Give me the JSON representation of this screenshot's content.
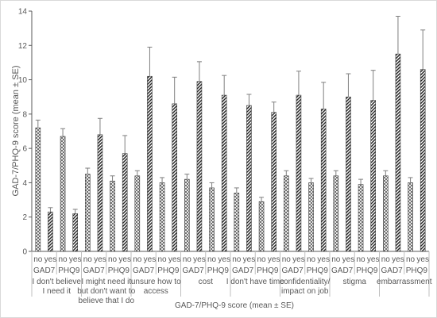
{
  "chart_data": {
    "type": "bar",
    "title": "",
    "ylabel": "GAD-7/PHQ-9 score (mean ± SE)",
    "xlabel": "GAD-7/PHQ-9 score (mean ± SE)",
    "ylim": [
      0,
      14
    ],
    "ytick_step": 2,
    "grid": false,
    "bar_labels": [
      "no",
      "yes"
    ],
    "measure_labels": [
      "GAD7",
      "PHQ9"
    ],
    "groups": [
      {
        "label_lines": [
          "I don't believe",
          "I need it"
        ],
        "measures": [
          {
            "measure": "GAD7",
            "values": [
              7.2,
              2.3
            ],
            "errors": [
              0.45,
              0.25
            ]
          },
          {
            "measure": "PHQ9",
            "values": [
              6.7,
              2.2
            ],
            "errors": [
              0.45,
              0.25
            ]
          }
        ]
      },
      {
        "label_lines": [
          "I might need it",
          "but don't want to",
          "believe that I do"
        ],
        "measures": [
          {
            "measure": "GAD7",
            "values": [
              4.5,
              6.8
            ],
            "errors": [
              0.35,
              0.95
            ]
          },
          {
            "measure": "PHQ9",
            "values": [
              4.1,
              5.7
            ],
            "errors": [
              0.3,
              1.05
            ]
          }
        ]
      },
      {
        "label_lines": [
          "unsure how to",
          "access"
        ],
        "measures": [
          {
            "measure": "GAD7",
            "values": [
              4.4,
              10.2
            ],
            "errors": [
              0.3,
              1.7
            ]
          },
          {
            "measure": "PHQ9",
            "values": [
              4.0,
              8.6
            ],
            "errors": [
              0.3,
              1.55
            ]
          }
        ]
      },
      {
        "label_lines": [
          "cost"
        ],
        "measures": [
          {
            "measure": "GAD7",
            "values": [
              4.2,
              9.9
            ],
            "errors": [
              0.3,
              1.15
            ]
          },
          {
            "measure": "PHQ9",
            "values": [
              3.7,
              9.1
            ],
            "errors": [
              0.3,
              1.15
            ]
          }
        ]
      },
      {
        "label_lines": [
          "I don't have time"
        ],
        "measures": [
          {
            "measure": "GAD7",
            "values": [
              3.4,
              8.5
            ],
            "errors": [
              0.3,
              0.65
            ]
          },
          {
            "measure": "PHQ9",
            "values": [
              2.9,
              8.1
            ],
            "errors": [
              0.25,
              0.6
            ]
          }
        ]
      },
      {
        "label_lines": [
          "confidentiality/",
          "impact on job"
        ],
        "measures": [
          {
            "measure": "GAD7",
            "values": [
              4.4,
              9.1
            ],
            "errors": [
              0.3,
              1.4
            ]
          },
          {
            "measure": "PHQ9",
            "values": [
              4.0,
              8.3
            ],
            "errors": [
              0.25,
              1.55
            ]
          }
        ]
      },
      {
        "label_lines": [
          "stigma"
        ],
        "measures": [
          {
            "measure": "GAD7",
            "values": [
              4.4,
              9.0
            ],
            "errors": [
              0.3,
              1.35
            ]
          },
          {
            "measure": "PHQ9",
            "values": [
              3.9,
              8.8
            ],
            "errors": [
              0.3,
              1.75
            ]
          }
        ]
      },
      {
        "label_lines": [
          "embarrassment"
        ],
        "measures": [
          {
            "measure": "GAD7",
            "values": [
              4.4,
              11.5
            ],
            "errors": [
              0.3,
              2.2
            ]
          },
          {
            "measure": "PHQ9",
            "values": [
              4.0,
              10.6
            ],
            "errors": [
              0.3,
              2.3
            ]
          }
        ]
      }
    ],
    "colors": {
      "axis": "#595959",
      "text": "#595959",
      "bar_stroke": "#404040",
      "error_bar": "#7f7f7f",
      "separator": "#bfbfbf",
      "frame": "#d9d9d9"
    },
    "patterns": {
      "no": "crosshatch",
      "yes": "diagonal-stripes"
    }
  }
}
